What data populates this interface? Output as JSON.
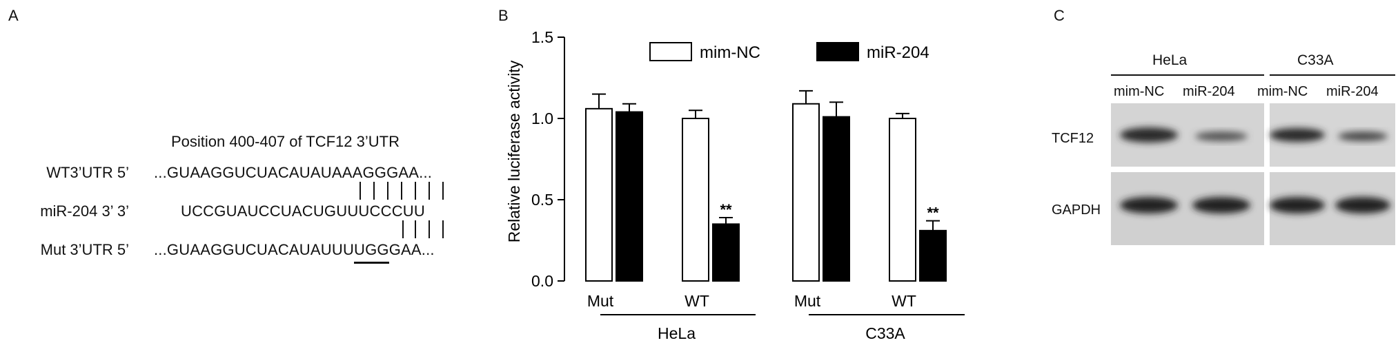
{
  "panels": {
    "a": "A",
    "b": "B",
    "c": "C"
  },
  "panel_a": {
    "title": "Position 400-407 of TCF12 3’UTR",
    "rows": [
      {
        "label": "WT3’UTR 5’",
        "sequence": "...GUAAGGUCUACAUAUAAAGGGAA..."
      },
      {
        "label": "miR-204 3’ 3’",
        "sequence": "UCCGUAUCCUACUGUUUCCCUU"
      },
      {
        "label": "Mut 3’UTR 5’",
        "sequence": "...GUAAGGUCUACAUAUUUUGGGAA..."
      }
    ]
  },
  "chart_data": {
    "type": "bar",
    "ylabel": "Relative luciferase activity",
    "ylim": [
      0,
      1.5
    ],
    "yticks": [
      "0.0",
      "0.5",
      "1.0",
      "1.5"
    ],
    "categories": [
      "Mut",
      "WT",
      "Mut",
      "WT"
    ],
    "groups": [
      "HeLa",
      "C33A"
    ],
    "series": [
      {
        "name": "mim-NC",
        "color": "#ffffff",
        "values": [
          1.06,
          1.0,
          1.09,
          1.0
        ],
        "errors": [
          0.09,
          0.05,
          0.08,
          0.03
        ]
      },
      {
        "name": "miR-204",
        "color": "#000000",
        "values": [
          1.04,
          0.35,
          1.01,
          0.31
        ],
        "errors": [
          0.05,
          0.04,
          0.09,
          0.06
        ]
      }
    ],
    "annotations": [
      {
        "category_index": 1,
        "series": "miR-204",
        "text": "**"
      },
      {
        "category_index": 3,
        "series": "miR-204",
        "text": "**"
      }
    ],
    "legend_position": "top"
  },
  "panel_c": {
    "cell_lines": [
      "HeLa",
      "C33A"
    ],
    "lanes": [
      "mim-NC",
      "miR-204",
      "mim-NC",
      "miR-204"
    ],
    "rows": [
      "TCF12",
      "GAPDH"
    ]
  }
}
